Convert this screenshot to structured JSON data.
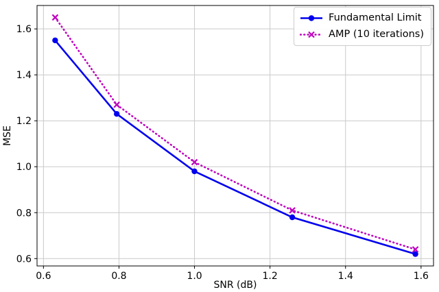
{
  "chart_data": {
    "type": "line",
    "title": "",
    "xlabel": "SNR (dB)",
    "ylabel": "MSE",
    "x": [
      0.631,
      0.794,
      1.0,
      1.259,
      1.585
    ],
    "series": [
      {
        "name": "Fundamental Limit",
        "values": [
          1.55,
          1.23,
          0.98,
          0.78,
          0.62
        ],
        "color": "#0000ee",
        "style": "solid",
        "marker": "circle"
      },
      {
        "name": "AMP (10 iterations)",
        "values": [
          1.65,
          1.27,
          1.02,
          0.81,
          0.64
        ],
        "color": "#bf00bf",
        "style": "dotted",
        "marker": "x"
      }
    ],
    "xlim": [
      0.583,
      1.633
    ],
    "ylim": [
      0.568,
      1.702
    ],
    "xticks": [
      0.6,
      0.8,
      1.0,
      1.2,
      1.4,
      1.6
    ],
    "xtick_labels": [
      "0.6",
      "0.8",
      "1.0",
      "1.2",
      "1.4",
      "1.6"
    ],
    "yticks": [
      0.6,
      0.8,
      1.0,
      1.2,
      1.4,
      1.6
    ],
    "ytick_labels": [
      "0.6",
      "0.8",
      "1.0",
      "1.2",
      "1.4",
      "1.6"
    ],
    "grid": true,
    "grid_color": "#c9c9c9",
    "spine_color": "#000000",
    "legend_position": "upper right"
  }
}
